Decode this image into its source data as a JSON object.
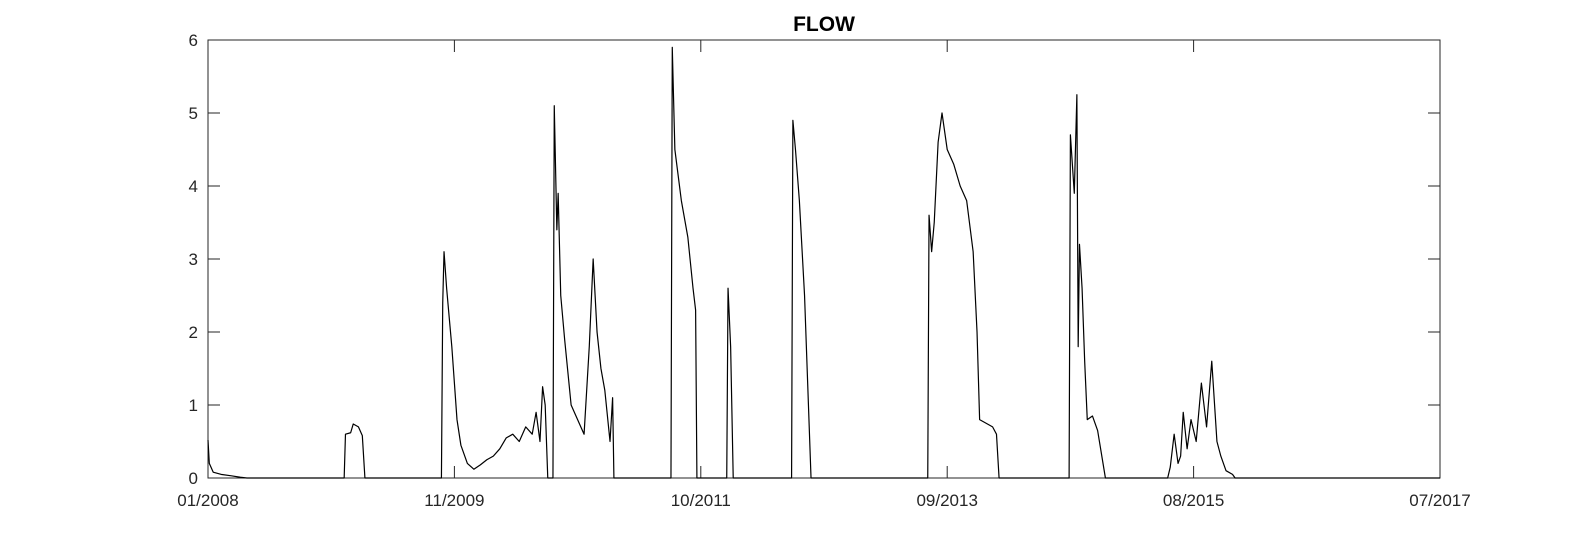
{
  "chart_data": {
    "type": "line",
    "title": "FLOW",
    "xlabel": "",
    "ylabel": "",
    "xlim": [
      "2008-01",
      "2017-07"
    ],
    "ylim": [
      0,
      6
    ],
    "x_ticks": [
      "01/2008",
      "11/2009",
      "10/2011",
      "09/2013",
      "08/2015",
      "07/2017"
    ],
    "y_ticks": [
      0,
      1,
      2,
      3,
      4,
      5,
      6
    ],
    "grid": false,
    "colors": {
      "line": "#000000",
      "axis": "#262626",
      "background": "#ffffff"
    },
    "series": [
      {
        "name": "FLOW",
        "points": [
          [
            2008.0,
            0.52
          ],
          [
            2008.01,
            0.2
          ],
          [
            2008.04,
            0.08
          ],
          [
            2008.1,
            0.05
          ],
          [
            2008.18,
            0.03
          ],
          [
            2008.25,
            0.01
          ],
          [
            2008.3,
            0.0
          ],
          [
            2009.05,
            0.0
          ],
          [
            2009.06,
            0.6
          ],
          [
            2009.1,
            0.62
          ],
          [
            2009.12,
            0.74
          ],
          [
            2009.16,
            0.7
          ],
          [
            2009.19,
            0.58
          ],
          [
            2009.21,
            0.0
          ],
          [
            2009.8,
            0.0
          ],
          [
            2009.81,
            2.4
          ],
          [
            2009.82,
            3.1
          ],
          [
            2009.84,
            2.6
          ],
          [
            2009.86,
            2.2
          ],
          [
            2009.88,
            1.8
          ],
          [
            2009.9,
            1.3
          ],
          [
            2009.92,
            0.8
          ],
          [
            2009.95,
            0.45
          ],
          [
            2010.0,
            0.2
          ],
          [
            2010.05,
            0.12
          ],
          [
            2010.1,
            0.18
          ],
          [
            2010.15,
            0.25
          ],
          [
            2010.2,
            0.3
          ],
          [
            2010.25,
            0.4
          ],
          [
            2010.3,
            0.55
          ],
          [
            2010.35,
            0.6
          ],
          [
            2010.4,
            0.5
          ],
          [
            2010.45,
            0.7
          ],
          [
            2010.5,
            0.6
          ],
          [
            2010.53,
            0.9
          ],
          [
            2010.56,
            0.5
          ],
          [
            2010.58,
            1.25
          ],
          [
            2010.6,
            1.0
          ],
          [
            2010.62,
            0.0
          ],
          [
            2010.66,
            0.0
          ],
          [
            2010.67,
            5.1
          ],
          [
            2010.69,
            3.4
          ],
          [
            2010.7,
            3.9
          ],
          [
            2010.72,
            2.5
          ],
          [
            2010.75,
            1.9
          ],
          [
            2010.8,
            1.0
          ],
          [
            2010.85,
            0.8
          ],
          [
            2010.9,
            0.6
          ],
          [
            2010.94,
            1.8
          ],
          [
            2010.97,
            3.0
          ],
          [
            2011.0,
            2.0
          ],
          [
            2011.03,
            1.5
          ],
          [
            2011.06,
            1.2
          ],
          [
            2011.1,
            0.5
          ],
          [
            2011.12,
            1.1
          ],
          [
            2011.13,
            0.0
          ],
          [
            2011.57,
            0.0
          ],
          [
            2011.58,
            5.9
          ],
          [
            2011.6,
            4.5
          ],
          [
            2011.65,
            3.8
          ],
          [
            2011.7,
            3.3
          ],
          [
            2011.74,
            2.6
          ],
          [
            2011.76,
            2.3
          ],
          [
            2011.77,
            0.0
          ],
          [
            2012.0,
            0.0
          ],
          [
            2012.01,
            2.6
          ],
          [
            2012.03,
            1.8
          ],
          [
            2012.05,
            0.0
          ],
          [
            2012.5,
            0.0
          ],
          [
            2012.51,
            4.9
          ],
          [
            2012.53,
            4.5
          ],
          [
            2012.56,
            3.8
          ],
          [
            2012.6,
            2.5
          ],
          [
            2012.63,
            1.0
          ],
          [
            2012.65,
            0.0
          ],
          [
            2013.55,
            0.0
          ],
          [
            2013.56,
            3.6
          ],
          [
            2013.58,
            3.1
          ],
          [
            2013.6,
            3.5
          ],
          [
            2013.63,
            4.6
          ],
          [
            2013.66,
            5.0
          ],
          [
            2013.7,
            4.5
          ],
          [
            2013.75,
            4.3
          ],
          [
            2013.8,
            4.0
          ],
          [
            2013.85,
            3.8
          ],
          [
            2013.9,
            3.1
          ],
          [
            2013.93,
            2.0
          ],
          [
            2013.95,
            0.8
          ],
          [
            2014.0,
            0.75
          ],
          [
            2014.05,
            0.7
          ],
          [
            2014.08,
            0.6
          ],
          [
            2014.1,
            0.0
          ],
          [
            2014.64,
            0.0
          ],
          [
            2014.65,
            4.7
          ],
          [
            2014.68,
            3.9
          ],
          [
            2014.7,
            5.25
          ],
          [
            2014.71,
            1.8
          ],
          [
            2014.72,
            3.2
          ],
          [
            2014.74,
            2.6
          ],
          [
            2014.76,
            1.6
          ],
          [
            2014.78,
            0.8
          ],
          [
            2014.82,
            0.85
          ],
          [
            2014.86,
            0.65
          ],
          [
            2014.92,
            0.0
          ],
          [
            2015.4,
            0.0
          ],
          [
            2015.42,
            0.15
          ],
          [
            2015.45,
            0.6
          ],
          [
            2015.48,
            0.2
          ],
          [
            2015.5,
            0.3
          ],
          [
            2015.52,
            0.9
          ],
          [
            2015.55,
            0.4
          ],
          [
            2015.58,
            0.8
          ],
          [
            2015.62,
            0.5
          ],
          [
            2015.66,
            1.3
          ],
          [
            2015.7,
            0.7
          ],
          [
            2015.74,
            1.6
          ],
          [
            2015.78,
            0.5
          ],
          [
            2015.81,
            0.3
          ],
          [
            2015.85,
            0.1
          ],
          [
            2015.9,
            0.05
          ],
          [
            2015.92,
            0.0
          ],
          [
            2017.5,
            0.0
          ]
        ]
      }
    ]
  }
}
